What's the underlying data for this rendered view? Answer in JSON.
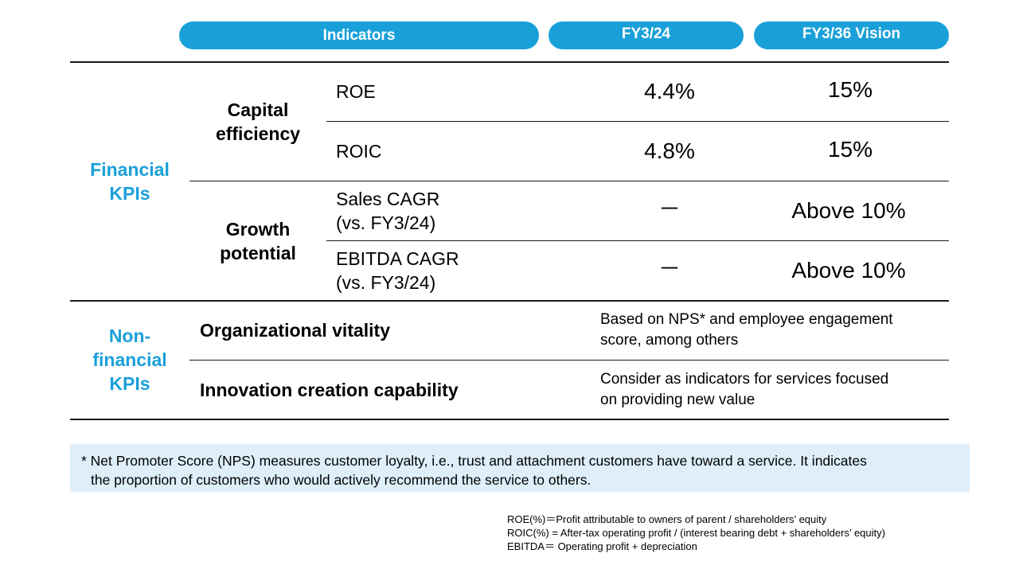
{
  "header": {
    "indicators": "Indicators",
    "fy_current": "FY3/24",
    "fy_vision": "FY3/36 Vision"
  },
  "financial": {
    "category": [
      "Financial",
      "KPIs"
    ],
    "capital_efficiency": {
      "label": [
        "Capital",
        "efficiency"
      ],
      "rows": [
        {
          "indicator": [
            "ROE"
          ],
          "fy_current": "4.4%",
          "fy_vision": "15%"
        },
        {
          "indicator": [
            "ROIC"
          ],
          "fy_current": "4.8%",
          "fy_vision": "15%"
        }
      ]
    },
    "growth_potential": {
      "label": [
        "Growth",
        "potential"
      ],
      "rows": [
        {
          "indicator": [
            "Sales CAGR",
            "(vs. FY3/24)"
          ],
          "fy_current": "－",
          "fy_vision": "Above 10%"
        },
        {
          "indicator": [
            "EBITDA CAGR",
            "(vs. FY3/24)"
          ],
          "fy_current": "－",
          "fy_vision": "Above 10%"
        }
      ]
    }
  },
  "non_financial": {
    "category": [
      "Non-",
      "financial",
      "KPIs"
    ],
    "rows": [
      {
        "indicator": "Organizational vitality",
        "description": [
          "Based on NPS* and employee engagement",
          "score, among others"
        ]
      },
      {
        "indicator": "Innovation creation capability",
        "description": [
          "Consider as indicators for services focused",
          "on providing new value"
        ]
      }
    ]
  },
  "footnote": {
    "line1": "* Net Promoter Score (NPS) measures customer loyalty, i.e., trust and attachment customers have toward a service. It indicates",
    "line2": "the proportion of customers who would actively recommend the service to others."
  },
  "definitions": [
    "ROE(%)＝Profit attributable to owners of parent / shareholders’ equity",
    "ROIC(%) = After-tax operating profit / (interest bearing debt + shareholders’ equity)",
    "EBITDA＝ Operating profit + depreciation"
  ]
}
